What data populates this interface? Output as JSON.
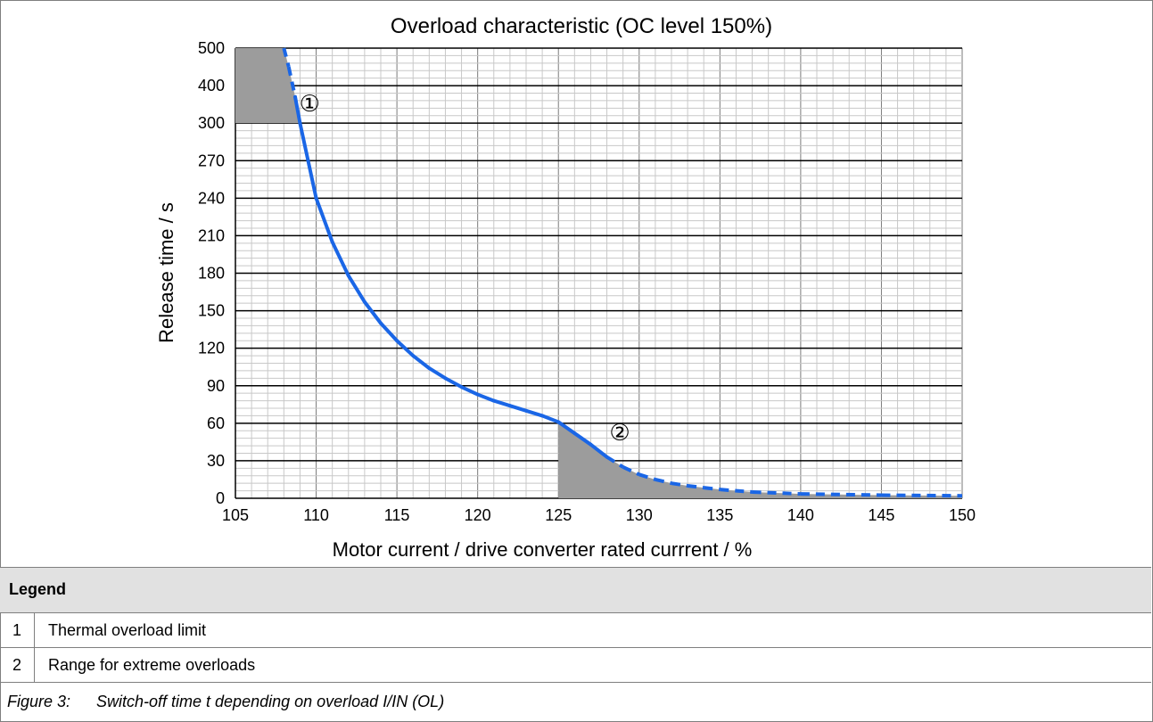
{
  "chart_data": {
    "type": "line",
    "title": "Overload characteristic (OC level 150%)",
    "xlabel": "Motor current / drive converter rated currrent / %",
    "ylabel": "Release time / s",
    "xlim": [
      105,
      150
    ],
    "x_ticks": [
      "105",
      "110",
      "115",
      "120",
      "125",
      "130",
      "135",
      "140",
      "145",
      "150"
    ],
    "y_ticks": [
      "0",
      "30",
      "60",
      "90",
      "120",
      "150",
      "180",
      "210",
      "240",
      "270",
      "300",
      "400",
      "500"
    ],
    "y_scale_note": "piecewise: 0-300 linear step 30, then 300, 400, 500",
    "grid": true,
    "series": [
      {
        "color": "#1a66e6",
        "x": [
          108.0,
          108.3,
          108.7,
          109.0,
          109.5,
          110.0,
          111.0,
          112.0,
          113.0,
          114.0,
          115.0,
          116.0,
          117.0,
          118.0,
          119.0,
          120.0,
          121.0,
          122.0,
          123.0,
          124.0,
          125.0,
          126.0,
          127.0,
          128.0,
          129.0,
          130.0,
          131.0,
          132.0,
          133.0,
          134.0,
          135.0,
          137.0,
          140.0,
          145.0,
          150.0
        ],
        "y": [
          500,
          450,
          370,
          300,
          270,
          240,
          205,
          178,
          157,
          140,
          126,
          114,
          104,
          96,
          89,
          83,
          78,
          74,
          70,
          66,
          61,
          52,
          43,
          33,
          25,
          19,
          15,
          12,
          10,
          8.5,
          7,
          5,
          3.5,
          2.5,
          2
        ],
        "dashed_ranges": [
          [
            108.0,
            108.7
          ],
          [
            128.0,
            150.0
          ]
        ]
      }
    ],
    "shaded_regions": [
      {
        "label": "①",
        "x_from": 105,
        "x_to": 108.9,
        "y_from": 300,
        "y_to": 500
      },
      {
        "label": "②",
        "x_from": 125,
        "x_to": 150,
        "y_from": 0,
        "y_to": "curve"
      }
    ],
    "annotations": [
      "①",
      "②"
    ]
  },
  "legend": {
    "heading": "Legend",
    "items": [
      {
        "num": "1",
        "text": "Thermal overload limit"
      },
      {
        "num": "2",
        "text": "Range for extreme overloads"
      }
    ]
  },
  "caption": {
    "label": "Figure 3:",
    "text": "Switch-off time t depending on overload I/IN (OL)"
  }
}
